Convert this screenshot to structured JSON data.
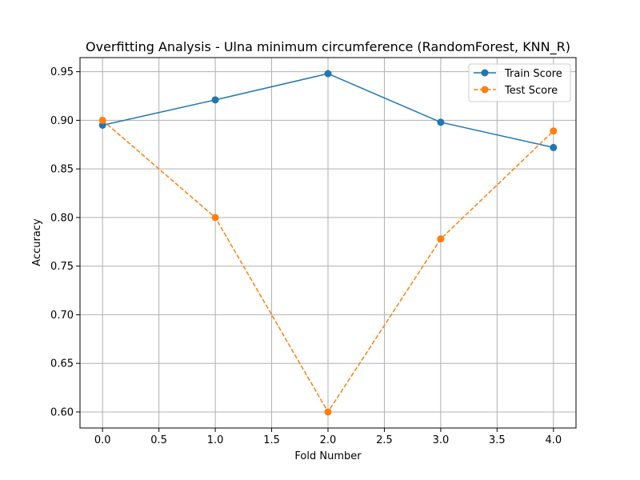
{
  "chart_data": {
    "type": "line",
    "title": "Overfitting Analysis - Ulna minimum circumference (RandomForest, KNN_R)",
    "xlabel": "Fold Number",
    "ylabel": "Accuracy",
    "x": [
      0,
      1,
      2,
      3,
      4
    ],
    "xlim": [
      -0.2,
      4.2
    ],
    "ylim": [
      0.5835,
      0.9645
    ],
    "xticks": [
      "0.0",
      "0.5",
      "1.0",
      "1.5",
      "2.0",
      "2.5",
      "3.0",
      "3.5",
      "4.0"
    ],
    "yticks": [
      "0.60",
      "0.65",
      "0.70",
      "0.75",
      "0.80",
      "0.85",
      "0.90",
      "0.95"
    ],
    "grid": true,
    "legend_position": "top-right",
    "series": [
      {
        "name": "Train Score",
        "values": [
          0.895,
          0.921,
          0.948,
          0.898,
          0.872
        ],
        "color": "#1f77b4",
        "style": "solid",
        "marker": "circle"
      },
      {
        "name": "Test Score",
        "values": [
          0.9,
          0.8,
          0.6,
          0.778,
          0.889
        ],
        "color": "#ff7f0e",
        "style": "dashed",
        "marker": "circle"
      }
    ]
  }
}
